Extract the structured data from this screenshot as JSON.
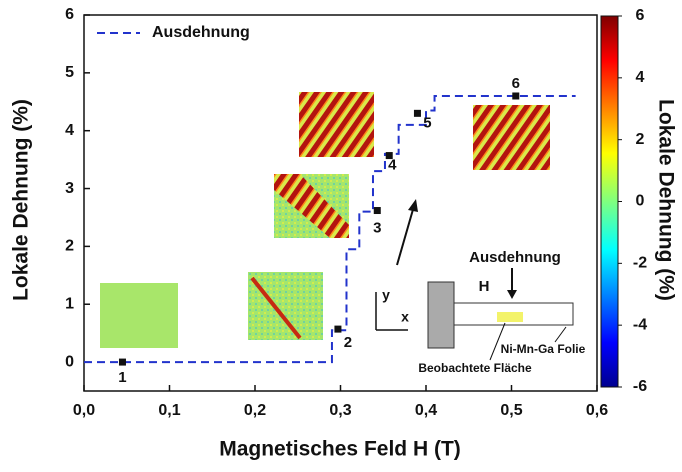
{
  "chart_data": {
    "type": "line",
    "x_label": "Magnetisches Feld H (T)",
    "y_label": "Lokale Dehnung (%)",
    "xlim": [
      0,
      0.6
    ],
    "ylim": [
      -0.5,
      6
    ],
    "xticks": [
      {
        "value": 0,
        "label": "0,0"
      },
      {
        "value": 0.1,
        "label": "0,1"
      },
      {
        "value": 0.2,
        "label": "0,2"
      },
      {
        "value": 0.3,
        "label": "0,3"
      },
      {
        "value": 0.4,
        "label": "0,4"
      },
      {
        "value": 0.5,
        "label": "0,5"
      },
      {
        "value": 0.6,
        "label": "0,6"
      }
    ],
    "yticks": [
      0,
      1,
      2,
      3,
      4,
      5,
      6
    ],
    "legend": "top-left",
    "series": [
      {
        "name": "Ausdehnung",
        "color": "#2233cc",
        "style": "dashed",
        "x": [
          0,
          0.29,
          0.29,
          0.307,
          0.307,
          0.322,
          0.322,
          0.338,
          0.338,
          0.352,
          0.352,
          0.368,
          0.368,
          0.4,
          0.4,
          0.41,
          0.41,
          0.575
        ],
        "y": [
          0,
          0,
          0.55,
          0.55,
          1.95,
          1.95,
          2.6,
          2.6,
          3.3,
          3.3,
          3.6,
          3.6,
          4.1,
          4.1,
          4.35,
          4.35,
          4.6,
          4.6
        ]
      }
    ],
    "points": {
      "color": "#111111",
      "x": [
        0.045,
        0.297,
        0.343,
        0.357,
        0.39,
        0.505
      ],
      "y": [
        0,
        0.57,
        2.62,
        3.57,
        4.3,
        4.6
      ],
      "labels": [
        "1",
        "2",
        "3",
        "4",
        "5",
        "6"
      ]
    },
    "colorbar": {
      "label": "Lokale Dehnung (%)",
      "lim": [
        -6,
        6
      ],
      "ticks": [
        -6,
        -4,
        -2,
        0,
        2,
        4,
        6
      ]
    },
    "annotations": {
      "force": "Ausdehnung",
      "field": "H",
      "axis_y": "y",
      "axis_x": "x",
      "foil": "Ni-Mn-Ga Folie",
      "area": "Beobachtete Fläche"
    }
  }
}
